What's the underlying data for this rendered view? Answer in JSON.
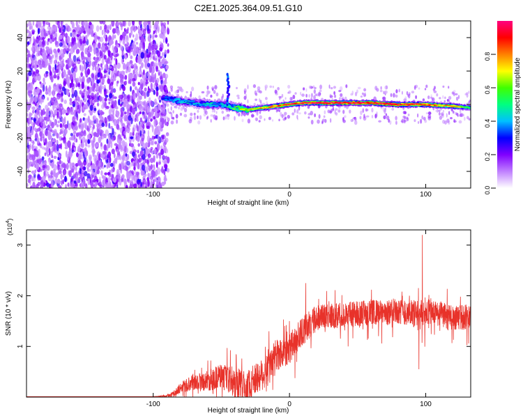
{
  "chart_data": [
    {
      "type": "heatmap",
      "title": "C2E1.2025.364.09.51.G10",
      "xlabel": "Height of straight line (km)",
      "ylabel": "Frequency (Hz)",
      "xlim": [
        -193,
        133
      ],
      "ylim": [
        -50,
        50
      ],
      "x_ticks": [
        -100,
        0,
        100
      ],
      "y_ticks": [
        -40,
        -20,
        0,
        20,
        40
      ],
      "colorbar": {
        "label": "Normalized spectral amplitude",
        "range": [
          0,
          1
        ],
        "ticks": [
          0.0,
          0.2,
          0.4,
          0.6,
          0.8
        ],
        "colors": [
          "#ffffff",
          "#c080ff",
          "#8000ff",
          "#0000ff",
          "#00c0ff",
          "#00ff80",
          "#40ff00",
          "#ffff00",
          "#ff8000",
          "#ff0000",
          "#ff0080"
        ]
      },
      "features": [
        {
          "name": "broadband noise",
          "x_range": [
            -193,
            -93
          ],
          "freq_range": [
            -50,
            50
          ],
          "amplitude": 0.15
        },
        {
          "name": "meteor trail line",
          "x_points": [
            -93,
            -80,
            -70,
            -60,
            -50,
            -40,
            -30,
            -20,
            -10,
            0,
            10,
            20,
            40,
            60,
            80,
            100,
            120,
            133
          ],
          "freq_points": [
            4,
            2,
            1,
            0,
            0,
            -2,
            -3,
            -2,
            -1,
            0,
            1,
            1,
            1,
            1,
            0,
            0,
            -1,
            -2
          ],
          "amplitude_points": [
            0.35,
            0.45,
            0.4,
            0.45,
            0.4,
            0.6,
            0.7,
            0.75,
            0.85,
            0.9,
            0.92,
            0.95,
            0.95,
            0.93,
            0.9,
            0.85,
            0.75,
            0.5
          ]
        },
        {
          "name": "spike",
          "x": -45,
          "freq_range": [
            0,
            18
          ],
          "amplitude": 0.35
        }
      ]
    },
    {
      "type": "line",
      "title": "",
      "xlabel": "Height of straight line (km)",
      "ylabel": "SNR (10 * v/v)",
      "y_multiplier": "(x10",
      "y_exponent": "4",
      "xlim": [
        -193,
        133
      ],
      "ylim": [
        0,
        3.3
      ],
      "x_ticks": [
        -100,
        0,
        100
      ],
      "y_ticks": [
        1,
        2,
        3
      ],
      "series": [
        {
          "name": "SNR",
          "color": "#e8322a",
          "x": [
            -193,
            -150,
            -100,
            -90,
            -85,
            -80,
            -75,
            -70,
            -60,
            -50,
            -40,
            -30,
            -20,
            -15,
            -10,
            -5,
            0,
            5,
            10,
            15,
            20,
            30,
            40,
            50,
            60,
            70,
            80,
            90,
            95,
            100,
            110,
            120,
            133
          ],
          "y": [
            0.01,
            0.01,
            0.01,
            0.02,
            0.06,
            0.18,
            0.25,
            0.3,
            0.32,
            0.42,
            0.28,
            0.25,
            0.45,
            0.55,
            0.8,
            0.9,
            0.95,
            1.15,
            1.3,
            1.45,
            1.55,
            1.6,
            1.62,
            1.65,
            1.68,
            1.65,
            1.7,
            1.65,
            1.6,
            1.7,
            1.65,
            1.55,
            1.6
          ],
          "noise": [
            0,
            0,
            0,
            0.02,
            0.06,
            0.1,
            0.14,
            0.16,
            0.2,
            0.26,
            0.3,
            0.3,
            0.32,
            0.35,
            0.35,
            0.32,
            0.3,
            0.3,
            0.3,
            0.28,
            0.26,
            0.25,
            0.26,
            0.26,
            0.25,
            0.25,
            0.25,
            0.28,
            0.3,
            0.28,
            0.25,
            0.25,
            0.25
          ],
          "peaks": [
            {
              "x": 97.5,
              "y": 3.2
            },
            {
              "x": 95,
              "y": 0.55
            },
            {
              "x": -15,
              "y": 1.3
            },
            {
              "x": 0,
              "y": 1.5
            },
            {
              "x": 12,
              "y": 2.25
            },
            {
              "x": -28,
              "y": 0.05
            }
          ]
        }
      ]
    }
  ]
}
